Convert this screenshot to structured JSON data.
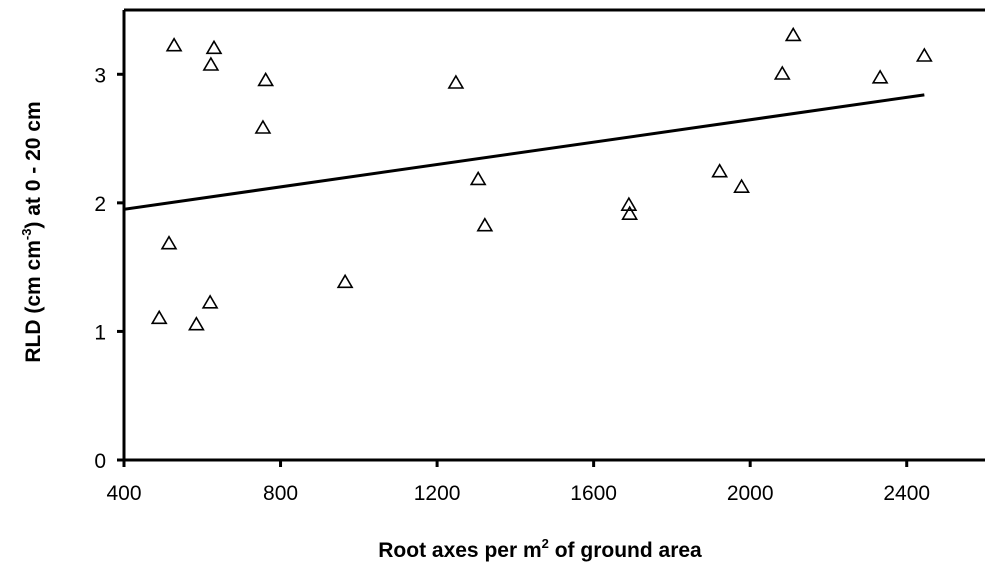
{
  "chart_data": {
    "type": "scatter",
    "title": "",
    "xlabel": {
      "before": "Root axes per m",
      "sup": "2",
      "after": " of ground area"
    },
    "ylabel": {
      "before": "RLD (cm cm",
      "sup": "-3",
      "after": ") at 0 - 20 cm"
    },
    "xlim": [
      400,
      2600
    ],
    "ylim": [
      0,
      3.5
    ],
    "xticks": [
      400,
      800,
      1200,
      1600,
      2000,
      2400
    ],
    "yticks": [
      0,
      1,
      2,
      3
    ],
    "marker": "open-triangle",
    "grid": false,
    "legend": false,
    "points": [
      {
        "x": 490,
        "y": 1.11
      },
      {
        "x": 515,
        "y": 1.69
      },
      {
        "x": 528,
        "y": 3.23
      },
      {
        "x": 585,
        "y": 1.06
      },
      {
        "x": 620,
        "y": 1.23
      },
      {
        "x": 622,
        "y": 3.08
      },
      {
        "x": 630,
        "y": 3.21
      },
      {
        "x": 755,
        "y": 2.59
      },
      {
        "x": 762,
        "y": 2.96
      },
      {
        "x": 965,
        "y": 1.39
      },
      {
        "x": 1248,
        "y": 2.94
      },
      {
        "x": 1305,
        "y": 2.19
      },
      {
        "x": 1322,
        "y": 1.83
      },
      {
        "x": 1690,
        "y": 1.99
      },
      {
        "x": 1692,
        "y": 1.92
      },
      {
        "x": 1922,
        "y": 2.25
      },
      {
        "x": 1978,
        "y": 2.13
      },
      {
        "x": 2082,
        "y": 3.01
      },
      {
        "x": 2110,
        "y": 3.31
      },
      {
        "x": 2332,
        "y": 2.98
      },
      {
        "x": 2445,
        "y": 3.15
      }
    ],
    "trendline": {
      "x": [
        400,
        2445
      ],
      "y": [
        1.95,
        2.84
      ]
    }
  }
}
